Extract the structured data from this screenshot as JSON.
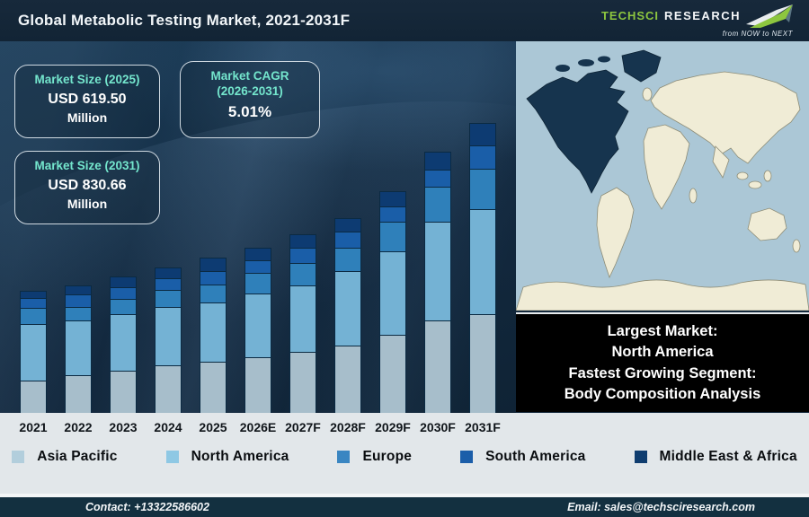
{
  "header": {
    "title": "Global Metabolic Testing Market, 2021-2031F",
    "logo": {
      "brand_primary": "TechSci",
      "brand_secondary": "Research",
      "tagline": "from NOW to NEXT",
      "accent_color": "#8dc63f"
    }
  },
  "info_boxes": [
    {
      "title": "Market Size (2025)",
      "value": "USD 619.50",
      "sub": "Million"
    },
    {
      "title": "Market CAGR",
      "title2": "(2026-2031)",
      "value": "5.01%"
    },
    {
      "title": "Market Size (2031)",
      "value": "USD 830.66",
      "sub": "Million"
    }
  ],
  "callout": {
    "lines": [
      "Largest Market:",
      "North America",
      "Fastest Growing Segment:",
      "Body Composition Analysis"
    ]
  },
  "chart_data": {
    "type": "bar",
    "stacked": true,
    "title": "Global Metabolic Testing Market, 2021-2031F",
    "categories": [
      "2021",
      "2022",
      "2023",
      "2024",
      "2025",
      "2026E",
      "2027F",
      "2028F",
      "2029F",
      "2030F",
      "2031F"
    ],
    "y_unit": "relative bar height (no numeric axis shown); anchors: 2025 total = USD 619.50 Million, 2031 total = USD 830.66 Million, CAGR 2026-2031 = 5.01%",
    "series": [
      {
        "name": "Asia Pacific",
        "color": "#a7becb",
        "values": [
          36,
          42,
          47,
          53,
          57,
          62,
          68,
          75,
          87,
          103,
          110
        ]
      },
      {
        "name": "North America",
        "color": "#74b2d4",
        "values": [
          63,
          61,
          63,
          65,
          66,
          71,
          74,
          83,
          93,
          110,
          117
        ]
      },
      {
        "name": "Europe",
        "color": "#2f80ba",
        "values": [
          18,
          15,
          17,
          19,
          20,
          23,
          25,
          26,
          33,
          39,
          45
        ]
      },
      {
        "name": "South America",
        "color": "#1a5ea8",
        "values": [
          11,
          14,
          13,
          13,
          15,
          14,
          17,
          18,
          17,
          19,
          26
        ]
      },
      {
        "name": "Middle East & Africa",
        "color": "#0d3b72",
        "values": [
          8,
          10,
          12,
          12,
          15,
          14,
          15,
          15,
          17,
          20,
          25
        ]
      }
    ],
    "legend_position": "bottom",
    "legend_colors": [
      "#b2cedc",
      "#8ec8e4",
      "#3a86c2",
      "#1b5ea9",
      "#0f3d6f"
    ],
    "annotations": {
      "market_size_2025": "USD 619.50 Million",
      "market_size_2031": "USD 830.66 Million",
      "cagr_2026_2031": "5.01%"
    }
  },
  "map": {
    "highlighted_region": "North America",
    "ocean_color": "#abc7d6",
    "land_color": "#f0ecd6",
    "highlight_color": "#16344e"
  },
  "footer": {
    "contact": "Contact: +13322586602",
    "email": "Email: sales@techsciresearch.com"
  }
}
